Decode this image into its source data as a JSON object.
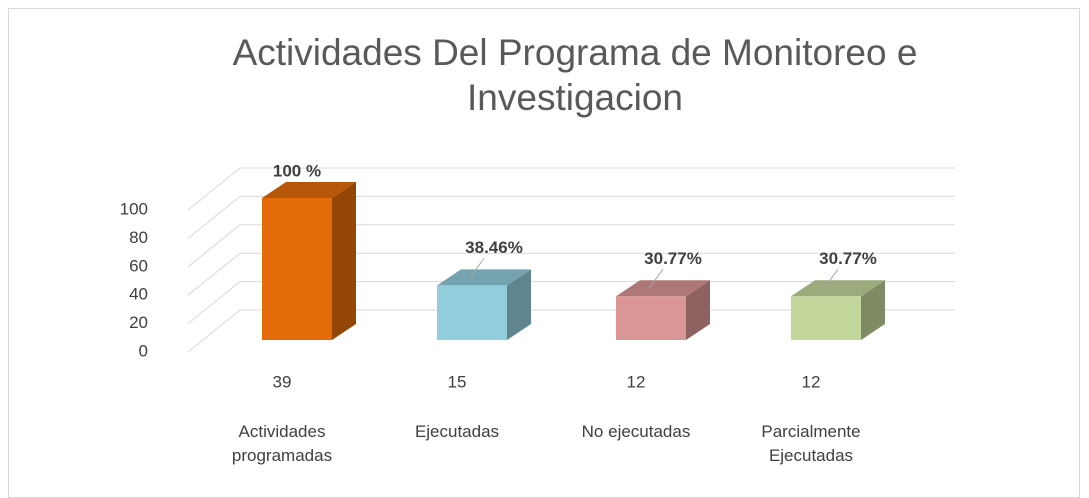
{
  "chart_data": {
    "type": "bar3d",
    "title": "Actividades Del Programa de Monitoreo e Investigacion",
    "categories": [
      "Actividades programadas",
      "Ejecutadas",
      "No ejecutadas",
      "Parcialmente Ejecutadas"
    ],
    "counts": [
      39,
      15,
      12,
      12
    ],
    "values": [
      100,
      38.46,
      30.77,
      30.77
    ],
    "value_labels": [
      "100 %",
      "38.46%",
      "30.77%",
      "30.77%"
    ],
    "colors": [
      "#e46c0a",
      "#92cddc",
      "#d99694",
      "#c3d69b"
    ],
    "ylim": [
      0,
      100
    ],
    "yticks": [
      0,
      20,
      40,
      60,
      80,
      100
    ],
    "grid": true
  }
}
